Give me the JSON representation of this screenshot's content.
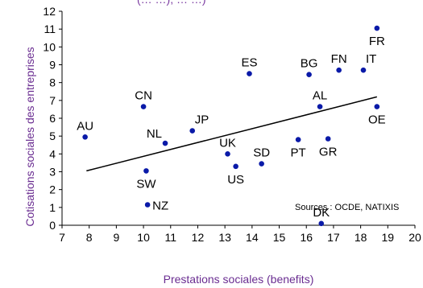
{
  "chart_data": {
    "type": "scatter",
    "title_fragment": "(… …), … …)",
    "xlabel": "Prestations sociales (benefits)",
    "ylabel": "Cotisations sociales des entreprises",
    "xlim": [
      7,
      20
    ],
    "ylim": [
      0,
      12
    ],
    "x_ticks": [
      "7",
      "8",
      "9",
      "10",
      "11",
      "12",
      "13",
      "14",
      "15",
      "16",
      "17",
      "18",
      "19",
      "20"
    ],
    "y_ticks": [
      "0",
      "1",
      "2",
      "3",
      "4",
      "5",
      "6",
      "7",
      "8",
      "9",
      "10",
      "11",
      "12"
    ],
    "source": "Sources : OCDE, NATIXIS",
    "point_color": "#0a1aa8",
    "trendline": {
      "x0": 7.9,
      "y0": 3.05,
      "x1": 18.6,
      "y1": 7.2
    },
    "points": [
      {
        "label": "AU",
        "x": 7.85,
        "y": 4.95,
        "pos": "above"
      },
      {
        "label": "CN",
        "x": 10.0,
        "y": 6.65,
        "pos": "above"
      },
      {
        "label": "NL",
        "x": 10.8,
        "y": 4.6,
        "pos": "above-left"
      },
      {
        "label": "JP",
        "x": 11.8,
        "y": 5.3,
        "pos": "above-right"
      },
      {
        "label": "SW",
        "x": 10.1,
        "y": 3.05,
        "pos": "below"
      },
      {
        "label": "NZ",
        "x": 10.15,
        "y": 1.15,
        "pos": "right"
      },
      {
        "label": "ES",
        "x": 13.9,
        "y": 8.5,
        "pos": "above"
      },
      {
        "label": "UK",
        "x": 13.1,
        "y": 4.0,
        "pos": "above"
      },
      {
        "label": "US",
        "x": 13.4,
        "y": 3.3,
        "pos": "below"
      },
      {
        "label": "SD",
        "x": 14.35,
        "y": 3.45,
        "pos": "above"
      },
      {
        "label": "BG",
        "x": 16.1,
        "y": 8.45,
        "pos": "above"
      },
      {
        "label": "FN",
        "x": 17.2,
        "y": 8.7,
        "pos": "above"
      },
      {
        "label": "IT",
        "x": 18.1,
        "y": 8.7,
        "pos": "above-right"
      },
      {
        "label": "FR",
        "x": 18.6,
        "y": 11.05,
        "pos": "below"
      },
      {
        "label": "AL",
        "x": 16.5,
        "y": 6.65,
        "pos": "above"
      },
      {
        "label": "OE",
        "x": 18.6,
        "y": 6.65,
        "pos": "below"
      },
      {
        "label": "PT",
        "x": 15.7,
        "y": 4.8,
        "pos": "below"
      },
      {
        "label": "GR",
        "x": 16.8,
        "y": 4.85,
        "pos": "below"
      },
      {
        "label": "DK",
        "x": 16.55,
        "y": 0.1,
        "pos": "above"
      }
    ]
  }
}
